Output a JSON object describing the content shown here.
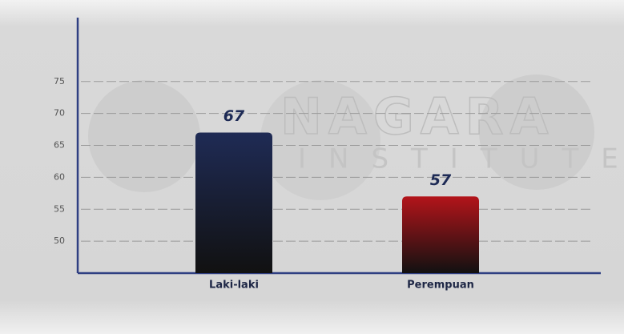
{
  "watermark": [
    "NAGARA",
    "INSTITUTE"
  ],
  "chart_data": {
    "type": "bar",
    "categories": [
      "Laki-laki",
      "Perempuan"
    ],
    "values": [
      67,
      57
    ],
    "colors": [
      "#1f2b55",
      "#b3141a"
    ],
    "ylim": [
      45,
      85
    ],
    "yticks": [
      50,
      55,
      60,
      65,
      70,
      75
    ],
    "grid": true
  }
}
